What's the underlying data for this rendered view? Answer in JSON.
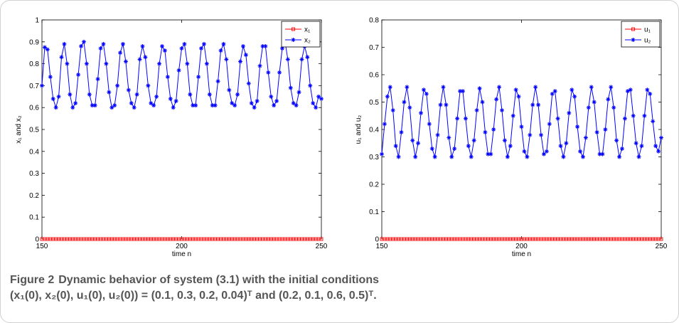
{
  "figure": {
    "caption_label": "Figure 2",
    "caption_line1": "Dynamic behavior of system (3.1) with the initial conditions",
    "caption_line2": "(x₁(0), x₂(0), u₁(0), u₂(0)) = (0.1, 0.3, 0.2, 0.04)ᵀ and (0.2, 0.1, 0.6, 0.5)ᵀ."
  },
  "colors": {
    "series1": "#ff0000",
    "series2": "#0000ff"
  },
  "chart_data": [
    {
      "type": "line",
      "xlabel": "time n",
      "ylabel": "x₁ and x₂",
      "xlim": [
        150,
        250
      ],
      "ylim": [
        0,
        1
      ],
      "xticks": [
        150,
        200,
        250
      ],
      "yticks": [
        0,
        0.1,
        0.2,
        0.3,
        0.4,
        0.5,
        0.6,
        0.7,
        0.8,
        0.9,
        1
      ],
      "ytick_labels": [
        "0",
        "0.1",
        "0.2",
        "0.3",
        "0.4",
        "0.5",
        "0.6",
        "0.7",
        "0.8",
        "0.9",
        "1"
      ],
      "grid": false,
      "legend_position": "top-right",
      "x_start": 150,
      "x_step": 1,
      "series": [
        {
          "name": "x₁",
          "color": "#ff0000",
          "marker": "square",
          "values": [
            0,
            0,
            0,
            0,
            0,
            0,
            0,
            0,
            0,
            0,
            0,
            0,
            0,
            0,
            0,
            0,
            0,
            0,
            0,
            0,
            0,
            0,
            0,
            0,
            0,
            0,
            0,
            0,
            0,
            0,
            0,
            0,
            0,
            0,
            0,
            0,
            0,
            0,
            0,
            0,
            0,
            0,
            0,
            0,
            0,
            0,
            0,
            0,
            0,
            0,
            0,
            0,
            0,
            0,
            0,
            0,
            0,
            0,
            0,
            0,
            0,
            0,
            0,
            0,
            0,
            0,
            0,
            0,
            0,
            0,
            0,
            0,
            0,
            0,
            0,
            0,
            0,
            0,
            0,
            0,
            0,
            0,
            0,
            0,
            0,
            0,
            0,
            0,
            0,
            0,
            0,
            0,
            0,
            0,
            0,
            0,
            0,
            0,
            0,
            0,
            0
          ]
        },
        {
          "name": "x₂",
          "color": "#0000ff",
          "marker": "star",
          "values": [
            0.7,
            0.875,
            0.865,
            0.74,
            0.64,
            0.6,
            0.65,
            0.83,
            0.89,
            0.8,
            0.66,
            0.6,
            0.62,
            0.75,
            0.88,
            0.9,
            0.8,
            0.66,
            0.61,
            0.61,
            0.73,
            0.87,
            0.89,
            0.8,
            0.67,
            0.6,
            0.61,
            0.7,
            0.85,
            0.89,
            0.81,
            0.68,
            0.62,
            0.6,
            0.66,
            0.82,
            0.88,
            0.83,
            0.7,
            0.62,
            0.61,
            0.65,
            0.8,
            0.88,
            0.86,
            0.74,
            0.64,
            0.6,
            0.63,
            0.77,
            0.87,
            0.89,
            0.8,
            0.66,
            0.61,
            0.61,
            0.74,
            0.87,
            0.89,
            0.8,
            0.66,
            0.61,
            0.61,
            0.72,
            0.86,
            0.89,
            0.82,
            0.68,
            0.62,
            0.61,
            0.66,
            0.81,
            0.88,
            0.84,
            0.71,
            0.62,
            0.6,
            0.63,
            0.79,
            0.88,
            0.88,
            0.76,
            0.65,
            0.61,
            0.63,
            0.76,
            0.87,
            0.9,
            0.82,
            0.69,
            0.62,
            0.61,
            0.67,
            0.82,
            0.88,
            0.83,
            0.7,
            0.62,
            0.6,
            0.65,
            0.64
          ]
        }
      ]
    },
    {
      "type": "line",
      "xlabel": "time n",
      "ylabel": "u₁ and u₂",
      "xlim": [
        150,
        250
      ],
      "ylim": [
        0,
        0.8
      ],
      "xticks": [
        150,
        200,
        250
      ],
      "yticks": [
        0,
        0.1,
        0.2,
        0.3,
        0.4,
        0.5,
        0.6,
        0.7,
        0.8
      ],
      "ytick_labels": [
        "0",
        "0.1",
        "0.2",
        "0.3",
        "0.4",
        "0.5",
        "0.6",
        "0.7",
        "0.8"
      ],
      "grid": false,
      "legend_position": "top-right",
      "x_start": 150,
      "x_step": 1,
      "series": [
        {
          "name": "u₁",
          "color": "#ff0000",
          "marker": "square",
          "values": [
            0,
            0,
            0,
            0,
            0,
            0,
            0,
            0,
            0,
            0,
            0,
            0,
            0,
            0,
            0,
            0,
            0,
            0,
            0,
            0,
            0,
            0,
            0,
            0,
            0,
            0,
            0,
            0,
            0,
            0,
            0,
            0,
            0,
            0,
            0,
            0,
            0,
            0,
            0,
            0,
            0,
            0,
            0,
            0,
            0,
            0,
            0,
            0,
            0,
            0,
            0,
            0,
            0,
            0,
            0,
            0,
            0,
            0,
            0,
            0,
            0,
            0,
            0,
            0,
            0,
            0,
            0,
            0,
            0,
            0,
            0,
            0,
            0,
            0,
            0,
            0,
            0,
            0,
            0,
            0,
            0,
            0,
            0,
            0,
            0,
            0,
            0,
            0,
            0,
            0,
            0,
            0,
            0,
            0,
            0,
            0,
            0,
            0,
            0,
            0,
            0
          ]
        },
        {
          "name": "u₂",
          "color": "#0000ff",
          "marker": "star",
          "values": [
            0.31,
            0.42,
            0.52,
            0.555,
            0.47,
            0.34,
            0.3,
            0.39,
            0.5,
            0.555,
            0.48,
            0.36,
            0.3,
            0.35,
            0.46,
            0.545,
            0.53,
            0.42,
            0.33,
            0.3,
            0.38,
            0.49,
            0.555,
            0.49,
            0.37,
            0.3,
            0.33,
            0.44,
            0.54,
            0.54,
            0.44,
            0.34,
            0.3,
            0.36,
            0.47,
            0.55,
            0.5,
            0.39,
            0.31,
            0.31,
            0.4,
            0.51,
            0.555,
            0.47,
            0.36,
            0.3,
            0.34,
            0.45,
            0.545,
            0.52,
            0.41,
            0.32,
            0.3,
            0.38,
            0.49,
            0.555,
            0.49,
            0.38,
            0.31,
            0.32,
            0.42,
            0.53,
            0.54,
            0.44,
            0.34,
            0.3,
            0.35,
            0.46,
            0.545,
            0.52,
            0.41,
            0.32,
            0.3,
            0.37,
            0.48,
            0.555,
            0.5,
            0.39,
            0.31,
            0.31,
            0.4,
            0.51,
            0.555,
            0.48,
            0.36,
            0.3,
            0.33,
            0.44,
            0.54,
            0.545,
            0.45,
            0.35,
            0.3,
            0.34,
            0.45,
            0.545,
            0.53,
            0.43,
            0.34,
            0.32,
            0.37
          ]
        }
      ]
    }
  ]
}
